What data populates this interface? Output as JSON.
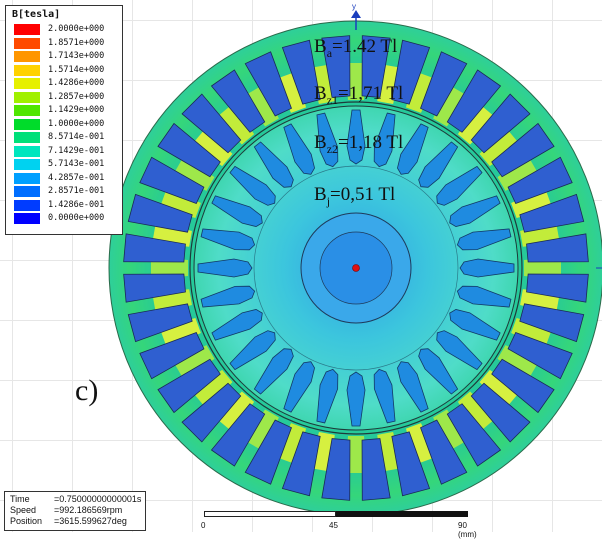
{
  "legend": {
    "title": "B[tesla]",
    "entries": [
      {
        "value": "2.0000e+000",
        "color": "#ff0000"
      },
      {
        "value": "1.8571e+000",
        "color": "#ff4a00"
      },
      {
        "value": "1.7143e+000",
        "color": "#ff9600"
      },
      {
        "value": "1.5714e+000",
        "color": "#ffd200"
      },
      {
        "value": "1.4286e+000",
        "color": "#e6f000"
      },
      {
        "value": "1.2857e+000",
        "color": "#a0f000"
      },
      {
        "value": "1.1429e+000",
        "color": "#50e600"
      },
      {
        "value": "1.0000e+000",
        "color": "#00dc2a"
      },
      {
        "value": "8.5714e-001",
        "color": "#00e07a"
      },
      {
        "value": "7.1429e-001",
        "color": "#00e6be"
      },
      {
        "value": "5.7143e-001",
        "color": "#00d2f0"
      },
      {
        "value": "4.2857e-001",
        "color": "#00a0ff"
      },
      {
        "value": "2.8571e-001",
        "color": "#006eff"
      },
      {
        "value": "1.4286e-001",
        "color": "#003cff"
      },
      {
        "value": "0.0000e+000",
        "color": "#0000ff"
      }
    ]
  },
  "annotations": {
    "ba_main": "B",
    "ba_sub": "a",
    "ba_val": "=1.42 Tl",
    "bz1_main": "B",
    "bz1_sub": "z1",
    "bz1_val": "=1,71 Tl",
    "bz2_main": "B",
    "bz2_sub": "z2",
    "bz2_val": "=1,18 Tl",
    "bj_main": "B",
    "bj_sub": "j",
    "bj_val": "=0,51 Tl"
  },
  "panel_label": "c)",
  "axis_label": "y",
  "info": {
    "time_label": "Time",
    "time_value": "=0.75000000000001s",
    "speed_label": "Speed",
    "speed_value": "=992.186569rpm",
    "position_label": "Position",
    "position_value": "=3615.599627deg"
  },
  "scale": {
    "tick0": "0",
    "tick1": "45",
    "tick2": "90 (mm)"
  },
  "colors": {
    "outer_yoke": "#2fd08a",
    "stator_tooth": "#c2ec3a",
    "stator_slot": "#2f5fd0",
    "rotor_body": "#45d2d4",
    "rotor_bar": "#1f8be0",
    "shaft_outer": "#39a8e8",
    "shaft_inner": "#2288e0"
  },
  "icons": {
    "center_marker": "red-dot-icon",
    "axis_arrow": "y-axis-arrow-icon"
  }
}
